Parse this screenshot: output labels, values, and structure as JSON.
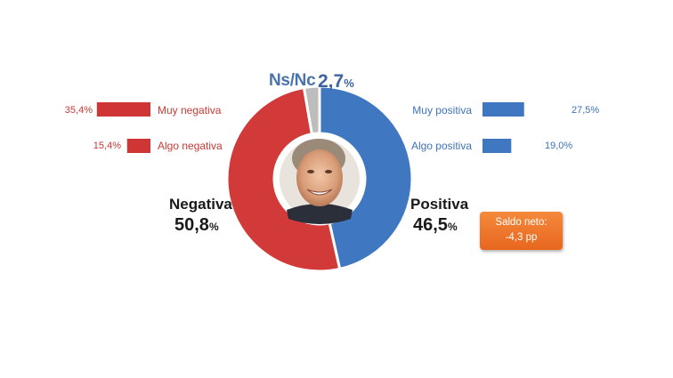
{
  "chart_data": {
    "type": "pie",
    "style": "donut",
    "slices": [
      {
        "label": "Positiva",
        "value": 46.5,
        "color": "#3f78c0"
      },
      {
        "label": "Negativa",
        "value": 50.8,
        "color": "#d23a3a"
      },
      {
        "label": "Ns/Nc",
        "value": 2.7,
        "color": "#bdbdbd"
      }
    ],
    "labels": {
      "negativa": {
        "name": "Negativa",
        "value": "50,8",
        "unit": "%"
      },
      "positiva": {
        "name": "Positiva",
        "value": "46,5",
        "unit": "%"
      },
      "nsnc": {
        "name": "Ns/Nc",
        "value": "2,7",
        "unit": "%"
      }
    },
    "breakdown": {
      "negative": [
        {
          "label": "Muy negativa",
          "value": 35.4,
          "display": "35,4%",
          "color": "#cf3535"
        },
        {
          "label": "Algo negativa",
          "value": 15.4,
          "display": "15,4%",
          "color": "#cf3535"
        }
      ],
      "positive": [
        {
          "label": "Muy positiva",
          "value": 27.5,
          "display": "27,5%",
          "color": "#3f78c0"
        },
        {
          "label": "Algo positiva",
          "value": 19.0,
          "display": "19,0%",
          "color": "#3f78c0"
        }
      ]
    },
    "saldo": {
      "line1": "Saldo neto:",
      "line2": "-4,3 pp"
    }
  },
  "center_photo": {
    "icon": "portrait-photo"
  }
}
